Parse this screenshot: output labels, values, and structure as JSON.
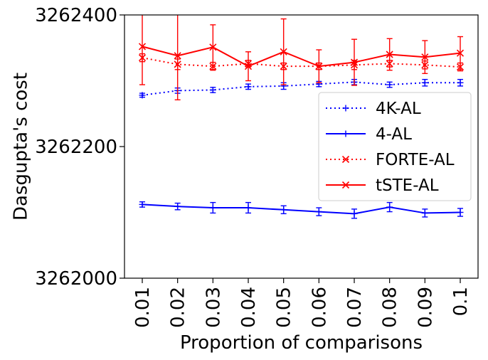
{
  "chart_data": {
    "type": "line",
    "title": "",
    "xlabel": "Proportion of comparisons",
    "ylabel": "Dasgupta's cost",
    "x": [
      0.01,
      0.02,
      0.03,
      0.04,
      0.05,
      0.06,
      0.07,
      0.08,
      0.09,
      0.1
    ],
    "x_tick_labels": [
      "0.01",
      "0.02",
      "0.03",
      "0.04",
      "0.05",
      "0.06",
      "0.07",
      "0.08",
      "0.09",
      "0.1"
    ],
    "ylim": [
      3262000,
      3262400
    ],
    "y_ticks": [
      3262000,
      3262200,
      3262400
    ],
    "y_tick_labels": [
      "3262000",
      "3262200",
      "3262400"
    ],
    "grid": false,
    "legend_position": "right",
    "series": [
      {
        "name": "4K-AL",
        "color": "#0000ff",
        "line_style": "dotted",
        "marker": "plus",
        "values": [
          3262278,
          3262285,
          3262286,
          3262291,
          3262292,
          3262295,
          3262298,
          3262294,
          3262297,
          3262297
        ],
        "errors": [
          3,
          4,
          4,
          4,
          5,
          4,
          4,
          4,
          5,
          5
        ]
      },
      {
        "name": "4-AL",
        "color": "#0000ff",
        "line_style": "solid",
        "marker": "plus",
        "values": [
          3262112,
          3262109,
          3262107,
          3262107,
          3262104,
          3262101,
          3262098,
          3262108,
          3262099,
          3262100
        ],
        "errors": [
          4,
          5,
          8,
          8,
          6,
          6,
          7,
          7,
          6,
          6
        ]
      },
      {
        "name": "FORTE-AL",
        "color": "#ff0000",
        "line_style": "dotted",
        "marker": "x",
        "values": [
          3262335,
          3262325,
          3262322,
          3262326,
          3262322,
          3262322,
          3262324,
          3262326,
          3262324,
          3262321
        ],
        "errors": [
          6,
          8,
          6,
          5,
          5,
          5,
          7,
          5,
          6,
          6
        ]
      },
      {
        "name": "tSTE-AL",
        "color": "#ff0000",
        "line_style": "solid",
        "marker": "x",
        "values": [
          3262352,
          3262338,
          3262351,
          3262322,
          3262344,
          3262322,
          3262328,
          3262340,
          3262336,
          3262342
        ],
        "errors": [
          58,
          67,
          34,
          22,
          50,
          25,
          35,
          24,
          25,
          25
        ]
      }
    ]
  }
}
